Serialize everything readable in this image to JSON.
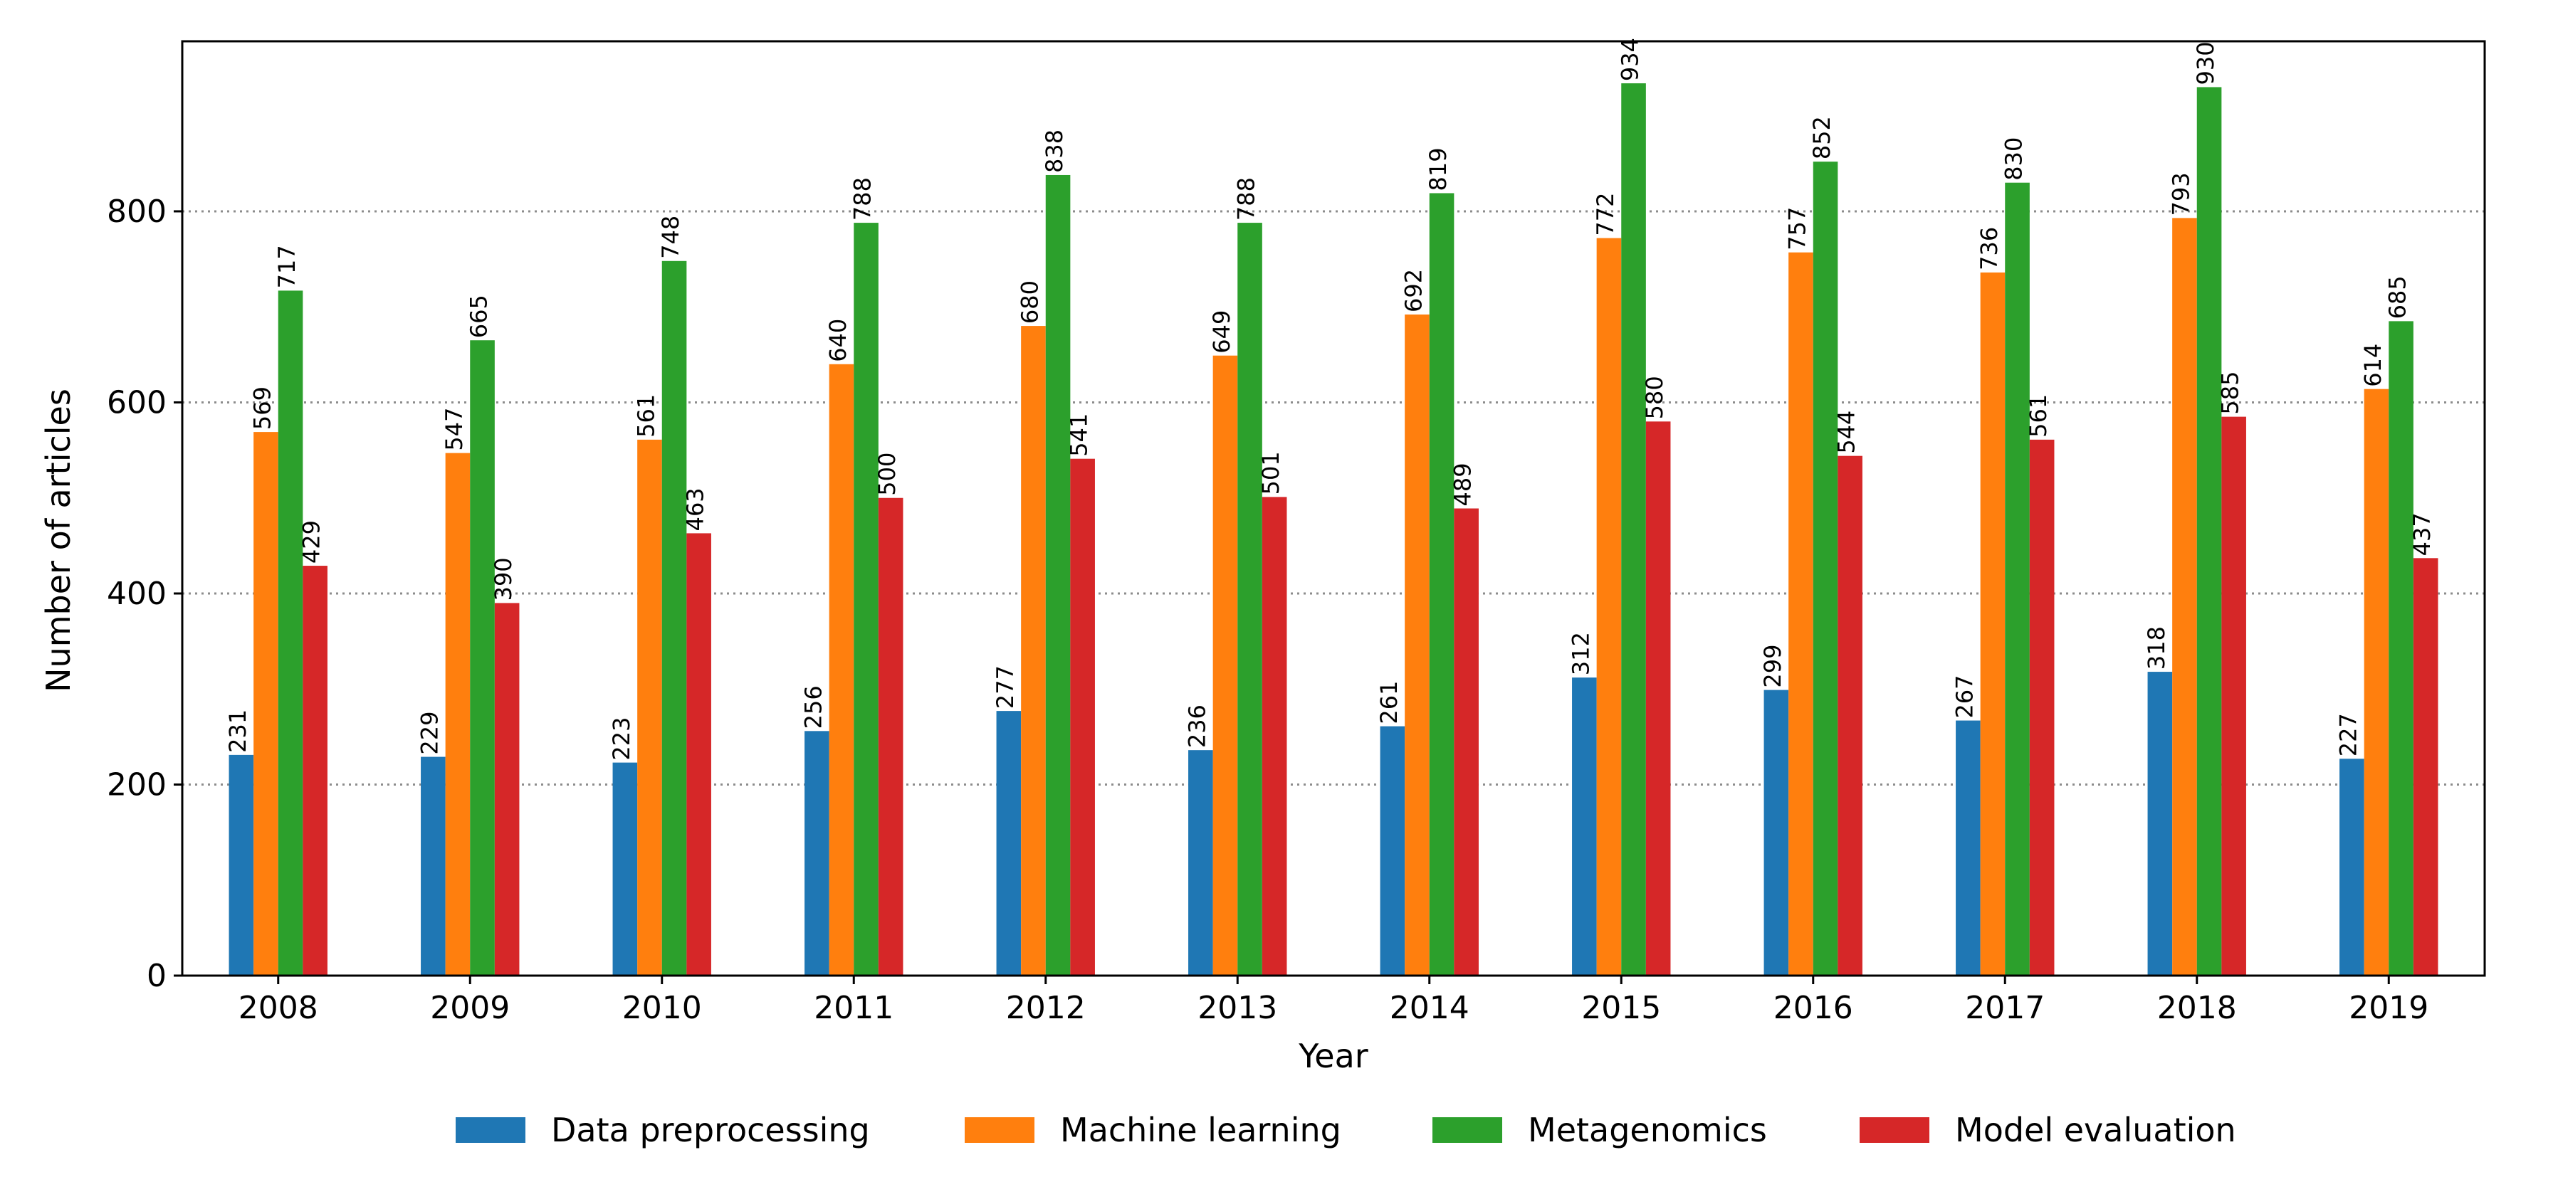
{
  "chart_data": {
    "type": "bar",
    "title": "",
    "xlabel": "Year",
    "ylabel": "Number of articles",
    "categories": [
      "2008",
      "2009",
      "2010",
      "2011",
      "2012",
      "2013",
      "2014",
      "2015",
      "2016",
      "2017",
      "2018",
      "2019"
    ],
    "series": [
      {
        "name": "Data preprocessing",
        "color": "#1f77b4",
        "values": [
          231,
          229,
          223,
          256,
          277,
          236,
          261,
          312,
          299,
          267,
          318,
          227
        ]
      },
      {
        "name": "Machine learning",
        "color": "#ff7f0e",
        "values": [
          569,
          547,
          561,
          640,
          680,
          649,
          692,
          772,
          757,
          736,
          793,
          614
        ]
      },
      {
        "name": "Metagenomics",
        "color": "#2ca02c",
        "values": [
          717,
          665,
          748,
          788,
          838,
          788,
          819,
          934,
          852,
          830,
          930,
          685
        ]
      },
      {
        "name": "Model evaluation",
        "color": "#d62728",
        "values": [
          429,
          390,
          463,
          500,
          541,
          501,
          489,
          580,
          544,
          561,
          585,
          437
        ]
      }
    ],
    "ylim": [
      0,
      978
    ],
    "yticks": [
      0,
      200,
      400,
      600,
      800
    ],
    "grid": "horizontal-dotted",
    "legend_position": "bottom-center",
    "data_labels": "rotated-vertical"
  }
}
